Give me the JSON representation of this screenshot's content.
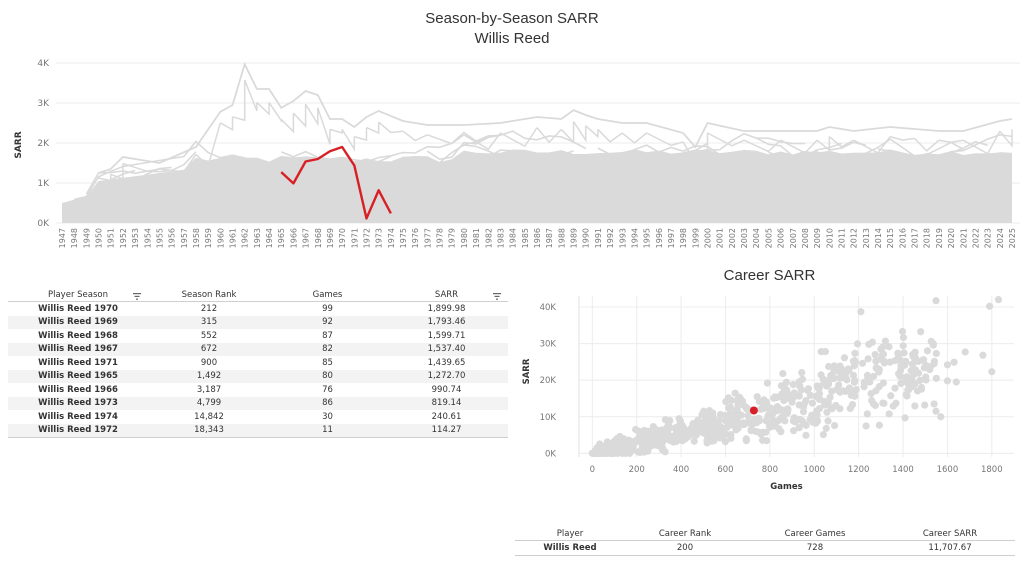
{
  "top_chart": {
    "title": "Season-by-Season SARR",
    "subtitle": "Willis Reed",
    "ylabel": "SARR",
    "y_ticks": [
      "0K",
      "1K",
      "2K",
      "3K",
      "4K"
    ],
    "colors": {
      "background": "#dadada",
      "highlight": "#d62026"
    }
  },
  "career_chart_title": "Career SARR",
  "season_table": {
    "headers": [
      "Player Season",
      "Season Rank",
      "Games",
      "SARR"
    ],
    "rows": [
      {
        "season": "Willis Reed 1970",
        "rank": "212",
        "games": "99",
        "sarr": "1,899.98"
      },
      {
        "season": "Willis Reed 1969",
        "rank": "315",
        "games": "92",
        "sarr": "1,793.46"
      },
      {
        "season": "Willis Reed 1968",
        "rank": "552",
        "games": "87",
        "sarr": "1,599.71"
      },
      {
        "season": "Willis Reed 1967",
        "rank": "672",
        "games": "82",
        "sarr": "1,537.40"
      },
      {
        "season": "Willis Reed 1971",
        "rank": "900",
        "games": "85",
        "sarr": "1,439.65"
      },
      {
        "season": "Willis Reed 1965",
        "rank": "1,492",
        "games": "80",
        "sarr": "1,272.70"
      },
      {
        "season": "Willis Reed 1966",
        "rank": "3,187",
        "games": "76",
        "sarr": "990.74"
      },
      {
        "season": "Willis Reed 1973",
        "rank": "4,799",
        "games": "86",
        "sarr": "819.14"
      },
      {
        "season": "Willis Reed 1974",
        "rank": "14,842",
        "games": "30",
        "sarr": "240.61"
      },
      {
        "season": "Willis Reed 1972",
        "rank": "18,343",
        "games": "11",
        "sarr": "114.27"
      }
    ]
  },
  "career_table": {
    "headers": [
      "Player",
      "Career Rank",
      "Career Games",
      "Career SARR"
    ],
    "rows": [
      {
        "player": "Willis Reed",
        "rank": "200",
        "games": "728",
        "sarr": "11,707.67"
      }
    ]
  },
  "chart_data": [
    {
      "type": "line",
      "title": "Season-by-Season SARR",
      "subtitle": "Willis Reed",
      "xlabel": "",
      "ylabel": "SARR",
      "ylim": [
        0,
        4000
      ],
      "y_ticks": [
        0,
        1000,
        2000,
        3000,
        4000
      ],
      "x_categories": [
        "1947",
        "1948",
        "1949",
        "1950",
        "1951",
        "1952",
        "1953",
        "1954",
        "1955",
        "1956",
        "1957",
        "1958",
        "1959",
        "1960",
        "1961",
        "1962",
        "1963",
        "1964",
        "1965",
        "1966",
        "1967",
        "1968",
        "1969",
        "1970",
        "1971",
        "1972",
        "1973",
        "1974",
        "1975",
        "1976",
        "1977",
        "1978",
        "1979",
        "1980",
        "1981",
        "1982",
        "1983",
        "1984",
        "1985",
        "1986",
        "1987",
        "1988",
        "1989",
        "1990",
        "1991",
        "1992",
        "1993",
        "1994",
        "1995",
        "1996",
        "1997",
        "1998",
        "1999",
        "2000",
        "2001",
        "2002",
        "2003",
        "2004",
        "2005",
        "2006",
        "2007",
        "2008",
        "2009",
        "2010",
        "2011",
        "2012",
        "2013",
        "2014",
        "2015",
        "2016",
        "2017",
        "2018",
        "2019",
        "2020",
        "2021",
        "2022",
        "2023",
        "2024",
        "2025"
      ],
      "highlight_series": {
        "name": "Willis Reed",
        "x": [
          "1965",
          "1966",
          "1967",
          "1968",
          "1969",
          "1970",
          "1971",
          "1972",
          "1973",
          "1974"
        ],
        "y": [
          1272.7,
          990.74,
          1537.4,
          1599.71,
          1793.46,
          1899.98,
          1439.65,
          114.27,
          819.14,
          240.61
        ]
      },
      "background_peaks": {
        "x": [
          "1950",
          "1951",
          "1952",
          "1955",
          "1958",
          "1960",
          "1961",
          "1962",
          "1963",
          "1964",
          "1965",
          "1966",
          "1967",
          "1968",
          "1969",
          "1970",
          "1971",
          "1972",
          "1973",
          "1975",
          "1977",
          "1980",
          "1983",
          "1986",
          "1988",
          "1989",
          "1990",
          "1991",
          "1993",
          "1995",
          "1998",
          "1999",
          "2000",
          "2003",
          "2006",
          "2009",
          "2010",
          "2012",
          "2015",
          "2017",
          "2019",
          "2021",
          "2024",
          "2025"
        ],
        "y": [
          1250,
          1350,
          1650,
          1500,
          1900,
          2780,
          2950,
          3970,
          3350,
          3350,
          2880,
          3050,
          3300,
          3200,
          2600,
          2600,
          2400,
          2650,
          2800,
          2550,
          2450,
          2450,
          2500,
          2650,
          2600,
          2820,
          2700,
          2600,
          2500,
          2500,
          2250,
          1900,
          2500,
          2300,
          2300,
          2300,
          2400,
          2300,
          2400,
          2350,
          2300,
          2300,
          2550,
          2600
        ]
      }
    },
    {
      "type": "scatter",
      "title": "Career SARR",
      "xlabel": "Games",
      "ylabel": "SARR",
      "xlim": [
        -60,
        1900
      ],
      "ylim": [
        -1000,
        43000
      ],
      "x_ticks": [
        0,
        200,
        400,
        600,
        800,
        1000,
        1200,
        1400,
        1600,
        1800
      ],
      "y_ticks": [
        0,
        10000,
        20000,
        30000,
        40000
      ],
      "y_tick_labels": [
        "0K",
        "10K",
        "20K",
        "30K",
        "40K"
      ],
      "highlight": {
        "name": "Willis Reed",
        "x": 728,
        "y": 11707.67
      },
      "outliers": {
        "x": [
          1210,
          1790,
          1830,
          1800,
          1680,
          1760,
          1550,
          1600,
          1520,
          1450,
          1510,
          1550,
          1640,
          1540,
          1570,
          1300,
          1380,
          1050,
          1090,
          1110,
          1240,
          1440,
          1600,
          1630
        ],
        "y": [
          38700,
          40200,
          42000,
          22300,
          27700,
          26800,
          27300,
          24200,
          22900,
          21600,
          28000,
          20500,
          19500,
          13500,
          10000,
          25700,
          26700,
          27800,
          23900,
          18700,
          21300,
          18200,
          19800,
          24900
        ]
      }
    }
  ]
}
